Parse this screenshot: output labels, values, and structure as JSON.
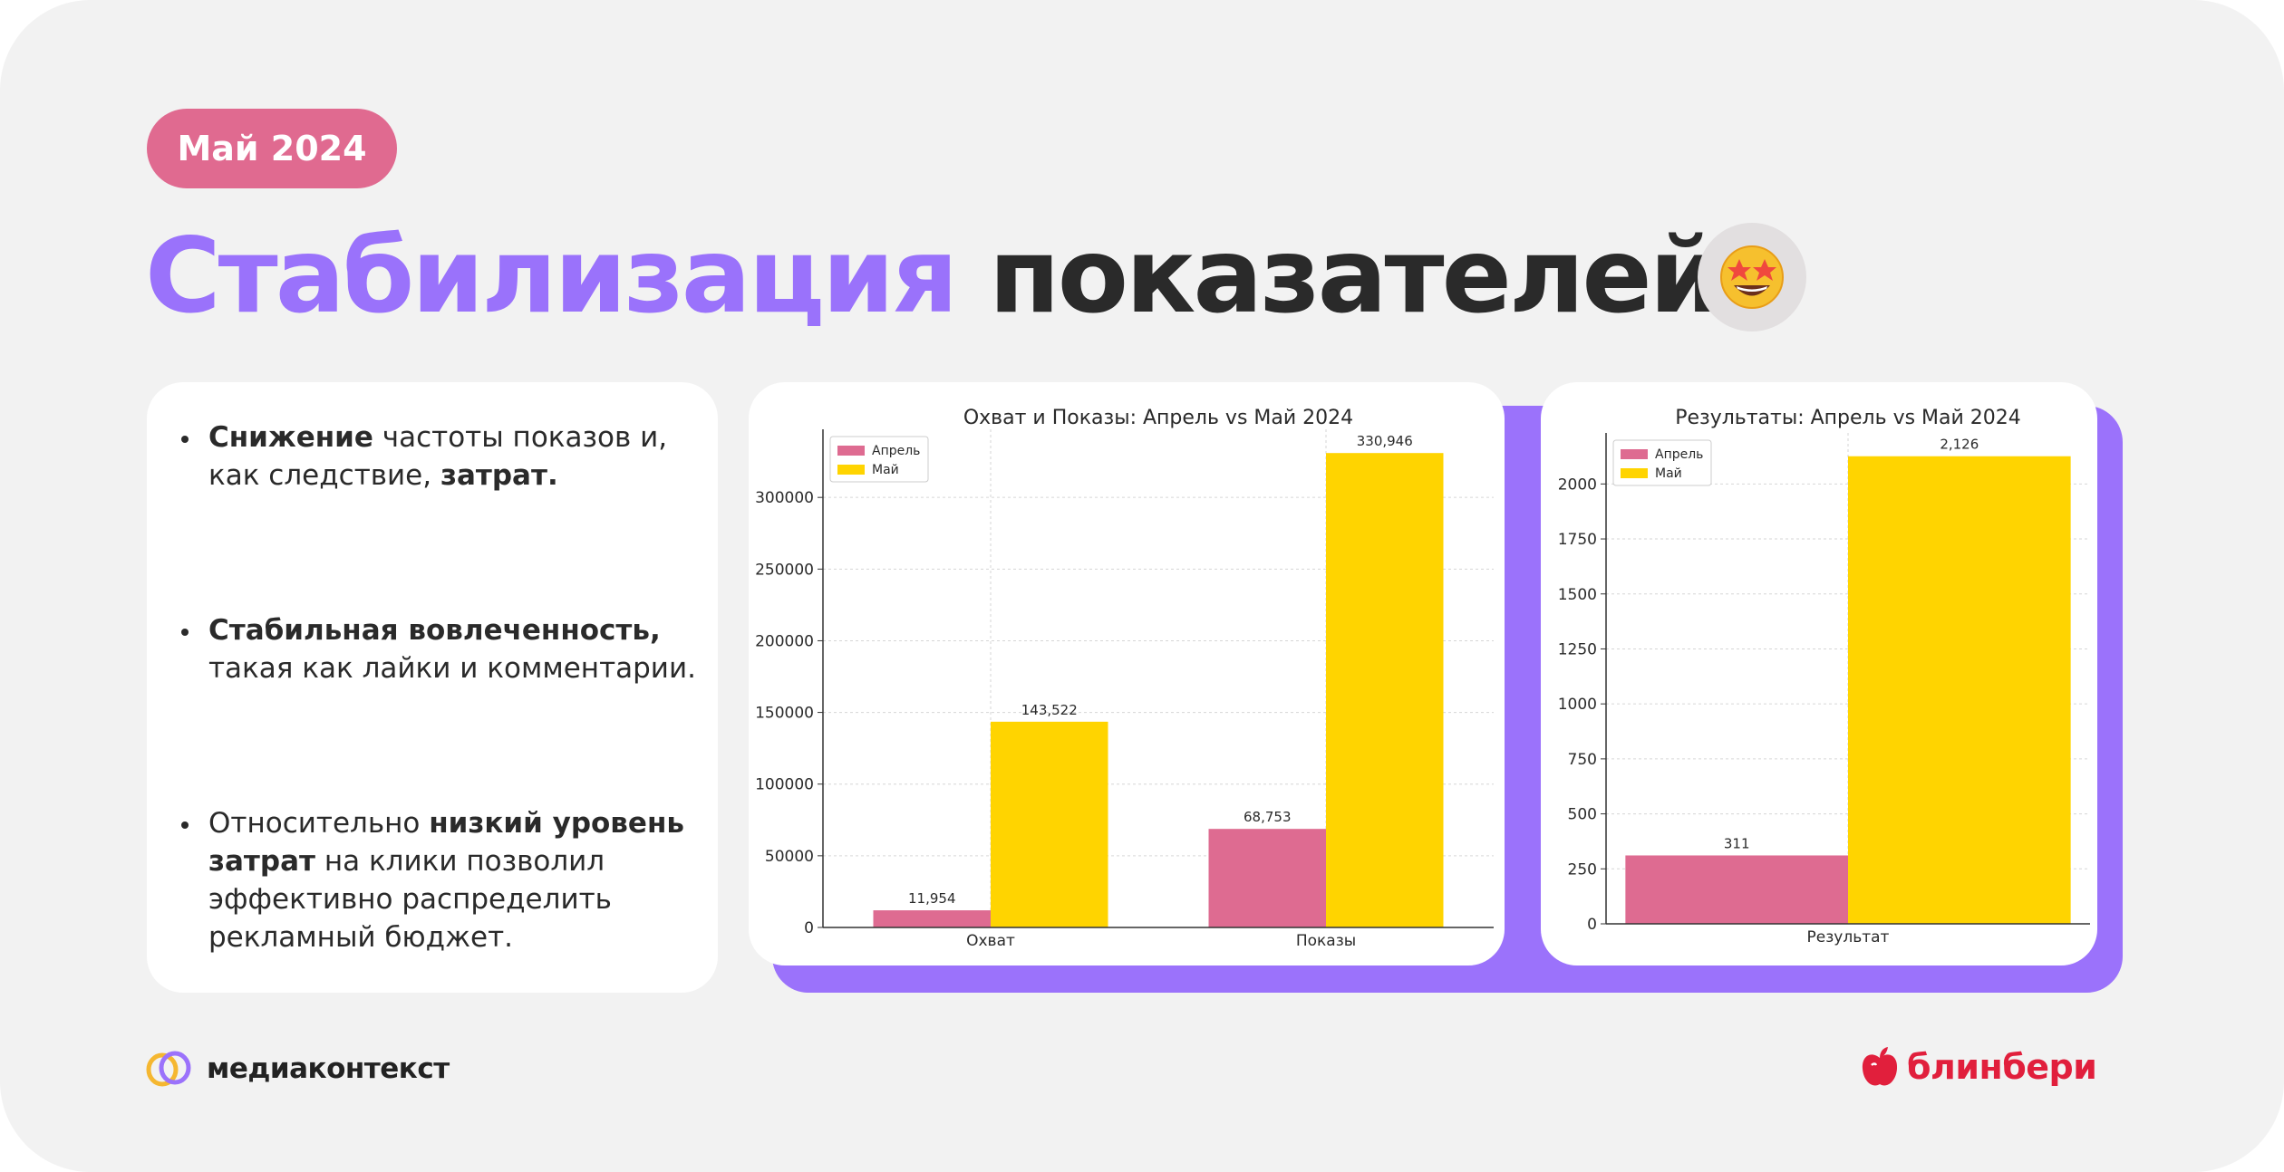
{
  "badge": "Май 2024",
  "title": {
    "part1": "Стабилизация",
    "part2": "показателей"
  },
  "icons": {
    "emoji": "star-struck-emoji-icon",
    "media_logo": "overlapping-rings-logo-icon",
    "blinberi_logo": "apple-logo-icon"
  },
  "bullets": [
    {
      "segments": [
        {
          "text": "Снижение",
          "bold": true
        },
        {
          "text": " частоты показов и, как следствие, ",
          "bold": false
        },
        {
          "text": "затрат.",
          "bold": true
        }
      ]
    },
    {
      "segments": [
        {
          "text": "Стабильная вовлеченность,",
          "bold": true
        },
        {
          "text": " такая как лайки и комментарии.",
          "bold": false
        }
      ]
    },
    {
      "segments": [
        {
          "text": "Относительно ",
          "bold": false
        },
        {
          "text": "низкий уровень затрат",
          "bold": true
        },
        {
          "text": " на клики позволил эффективно распределить рекламный бюджет.",
          "bold": false
        }
      ]
    }
  ],
  "brands": {
    "left": "медиаконтекст",
    "right": "блинбери"
  },
  "colors": {
    "april": "#de6b91",
    "may": "#ffd400",
    "accent": "#9b72fb",
    "badge": "#e06a90"
  },
  "chart_data": [
    {
      "type": "bar",
      "title": "Охват и Показы: Апрель vs Май 2024",
      "categories": [
        "Охват",
        "Показы"
      ],
      "series": [
        {
          "name": "Апрель",
          "values": [
            11954,
            68753
          ],
          "labels": [
            "11,954",
            "68,753"
          ]
        },
        {
          "name": "Май",
          "values": [
            143522,
            330946
          ],
          "labels": [
            "143,522",
            "330,946"
          ]
        }
      ],
      "yticks": [
        0,
        50000,
        100000,
        150000,
        200000,
        250000,
        300000
      ],
      "ylim": [
        0,
        347500
      ],
      "grid": true,
      "legend": "top-left"
    },
    {
      "type": "bar",
      "title": "Результаты: Апрель vs Май 2024",
      "categories": [
        "Результат"
      ],
      "series": [
        {
          "name": "Апрель",
          "values": [
            311
          ],
          "labels": [
            "311"
          ]
        },
        {
          "name": "Май",
          "values": [
            2126
          ],
          "labels": [
            "2,126"
          ]
        }
      ],
      "yticks": [
        0,
        250,
        500,
        750,
        1000,
        1250,
        1500,
        1750,
        2000
      ],
      "ylim": [
        0,
        2232
      ],
      "grid": true,
      "legend": "top-left"
    }
  ]
}
